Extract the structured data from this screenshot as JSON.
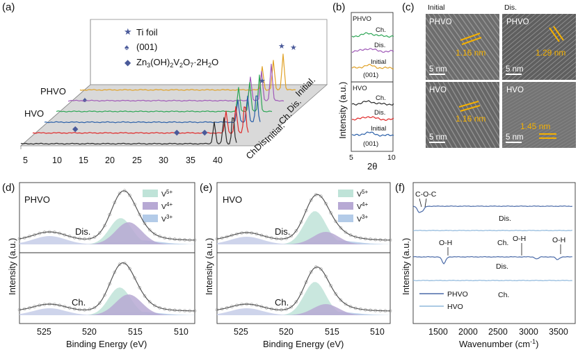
{
  "figure": {
    "panel_letters": [
      "(a)",
      "(b)",
      "(c)",
      "(d)",
      "(e)",
      "(f)"
    ]
  },
  "panel_a": {
    "legend": {
      "ti_foil": "Ti foil",
      "plane_001": "(001)",
      "compound_prefix": "Zn",
      "compound_parts": [
        "3",
        "(OH)",
        "2",
        "V",
        "2",
        "O",
        "7",
        "·2H",
        "2",
        "O"
      ]
    },
    "group_labels": [
      "PHVO",
      "HVO"
    ],
    "state_labels": [
      "Initial.",
      "Dis.",
      "Ch.",
      "Initial.",
      "Dis.",
      "Ch."
    ],
    "x_ticks": [
      "5",
      "10",
      "15",
      "20",
      "25",
      "30",
      "35",
      "40"
    ],
    "colors": [
      "#e0a126",
      "#a05ab8",
      "#2ea656",
      "#2a5fa8",
      "#e02828",
      "#2a2a2a"
    ]
  },
  "panel_b": {
    "y_title": "Intensity (a.u.)",
    "x_title": "2θ",
    "x_ticks": [
      "5",
      "10"
    ],
    "phvo": {
      "title": "PHVO",
      "labels": [
        "Ch.",
        "Dis.",
        "Initial",
        "(001)"
      ]
    },
    "hvo": {
      "title": "HVO",
      "labels": [
        "Ch.",
        "Dis.",
        "Initial",
        "(001)"
      ]
    }
  },
  "panel_c": {
    "col_headers": [
      "Initial",
      "Dis."
    ],
    "tiles": [
      {
        "sample": "PHVO",
        "spacing": "1.16 nm",
        "scale": "5 nm"
      },
      {
        "sample": "PHVO",
        "spacing": "1.29 nm",
        "scale": "5 nm"
      },
      {
        "sample": "HVO",
        "spacing": "1.16 nm",
        "scale": "5 nm"
      },
      {
        "sample": "HVO",
        "spacing": "1.45 nm",
        "scale": "5 nm"
      }
    ]
  },
  "panel_d": {
    "sample": "PHVO",
    "legend": [
      {
        "base": "V",
        "sup": "5+",
        "color": "#bfe3d8"
      },
      {
        "base": "V",
        "sup": "4+",
        "color": "#b7a9d4"
      },
      {
        "base": "V",
        "sup": "3+",
        "color": "#b3cbe8"
      }
    ],
    "states": [
      "Dis.",
      "Ch."
    ],
    "x_ticks": [
      "525",
      "520",
      "515",
      "510"
    ],
    "x_title": "Binding Energy (eV)",
    "y_title": "Intensity (a.u.)"
  },
  "panel_e": {
    "sample": "HVO",
    "legend": [
      {
        "base": "V",
        "sup": "5+",
        "color": "#bfe3d8"
      },
      {
        "base": "V",
        "sup": "4+",
        "color": "#b7a9d4"
      },
      {
        "base": "V",
        "sup": "3+",
        "color": "#b3cbe8"
      }
    ],
    "states": [
      "Dis.",
      "Ch."
    ],
    "x_ticks": [
      "525",
      "520",
      "515",
      "510"
    ],
    "x_title": "Binding Energy (eV)",
    "y_title": "Intensity (a.u.)"
  },
  "panel_f": {
    "annotations": [
      "C-O-C",
      "O-H",
      "O-H",
      "O-H"
    ],
    "state_labels": [
      "Dis.",
      "Ch.",
      "Dis.",
      "Ch."
    ],
    "legend": [
      {
        "name": "PHVO",
        "color": "#4a6aa8"
      },
      {
        "name": "HVO",
        "color": "#8fb8dc"
      }
    ],
    "x_ticks": [
      "1500",
      "2000",
      "2500",
      "3000",
      "3500"
    ],
    "x_title": "Wavenumber (cm",
    "x_title_sup": "-1",
    "x_title_end": ")",
    "y_title": "Intensity (a.u.)"
  }
}
